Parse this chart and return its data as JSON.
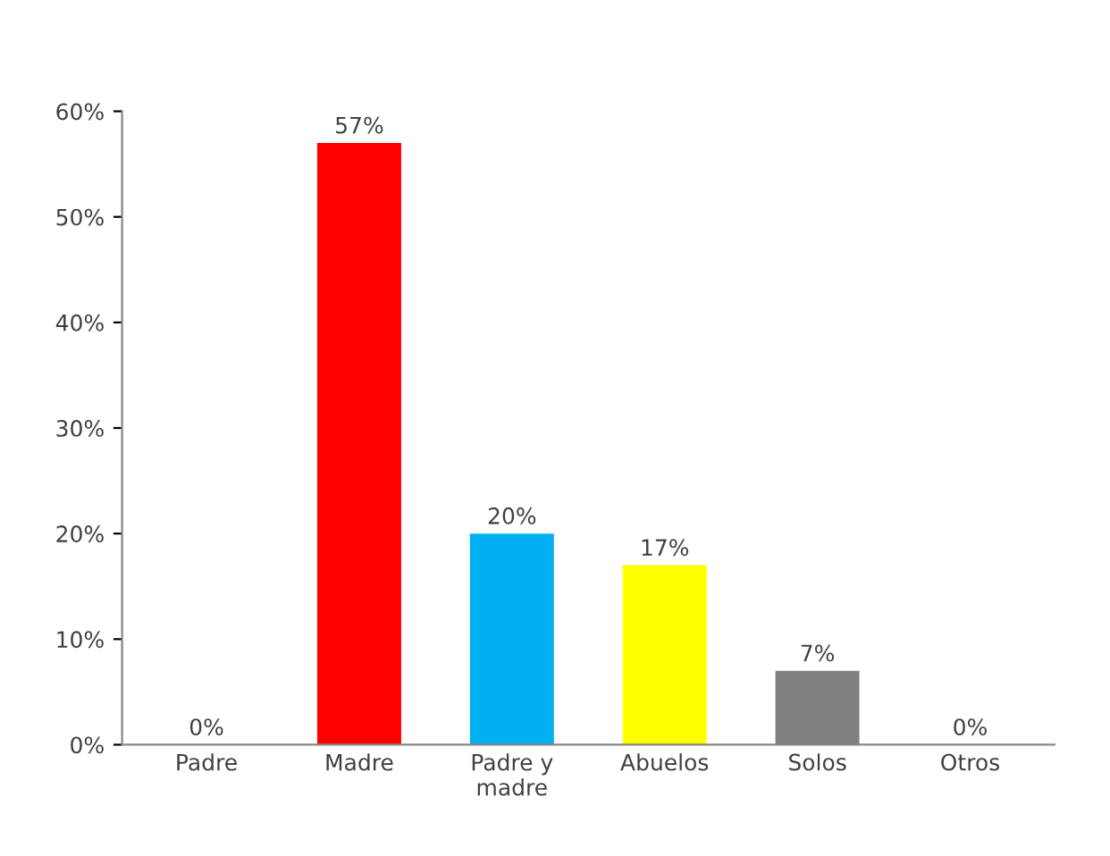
{
  "chart_data": {
    "type": "bar",
    "categories": [
      "Padre",
      "Madre",
      "Padre y\nmadre",
      "Abuelos",
      "Solos",
      "Otros"
    ],
    "values": [
      0,
      57,
      20,
      17,
      7,
      0
    ],
    "colors": [
      "#4f81bd",
      "#ff0000",
      "#00b0f0",
      "#ffff00",
      "#808080",
      "#c3d6b5"
    ],
    "value_labels": [
      "0%",
      "57%",
      "20%",
      "17%",
      "7%",
      "0%"
    ],
    "ylim": [
      0,
      60
    ],
    "yticks": [
      {
        "value": 0,
        "label": "0%"
      },
      {
        "value": 10,
        "label": "10%"
      },
      {
        "value": 20,
        "label": "20%"
      },
      {
        "value": 30,
        "label": "30%"
      },
      {
        "value": 40,
        "label": "40%"
      },
      {
        "value": 50,
        "label": "50%"
      },
      {
        "value": 60,
        "label": "60%"
      }
    ],
    "grid": false
  }
}
